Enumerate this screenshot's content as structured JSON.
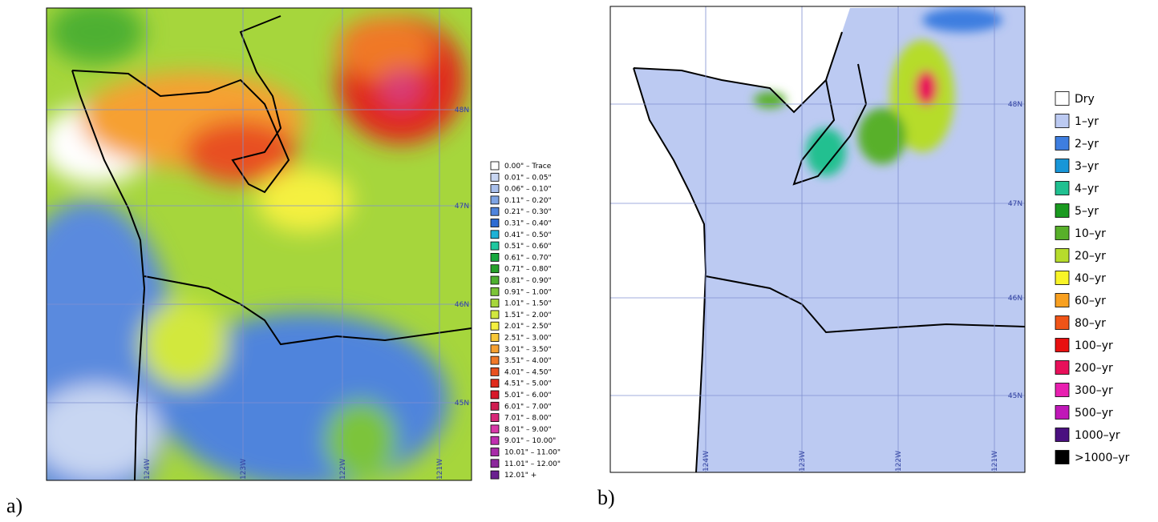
{
  "panels": [
    {
      "label": "a)",
      "lat_labels": [
        "48N",
        "47N",
        "46N",
        "45N"
      ],
      "lon_labels": [
        "124W",
        "123W",
        "122W",
        "121W"
      ],
      "legend": [
        {
          "label": "0.00\" – Trace",
          "color": "#ffffff"
        },
        {
          "label": "0.01\" – 0.05\"",
          "color": "#c8d6f2"
        },
        {
          "label": "0.06\" – 0.10\"",
          "color": "#a9c0ec"
        },
        {
          "label": "0.11\" – 0.20\"",
          "color": "#7ea4e4"
        },
        {
          "label": "0.21\" – 0.30\"",
          "color": "#4f84dc"
        },
        {
          "label": "0.31\" – 0.40\"",
          "color": "#2d6bd2"
        },
        {
          "label": "0.41\" – 0.50\"",
          "color": "#1fb2d6"
        },
        {
          "label": "0.51\" – 0.60\"",
          "color": "#20c8a0"
        },
        {
          "label": "0.61\" – 0.70\"",
          "color": "#17a83e"
        },
        {
          "label": "0.71\" – 0.80\"",
          "color": "#26a02a"
        },
        {
          "label": "0.81\" – 0.90\"",
          "color": "#4eb030"
        },
        {
          "label": "0.91\" – 1.00\"",
          "color": "#7cc43a"
        },
        {
          "label": "1.01\" – 1.50\"",
          "color": "#a6d63c"
        },
        {
          "label": "1.51\" – 2.00\"",
          "color": "#d2e83e"
        },
        {
          "label": "2.01\" – 2.50\"",
          "color": "#f4f040"
        },
        {
          "label": "2.51\" – 3.00\"",
          "color": "#f8c83a"
        },
        {
          "label": "3.01\" – 3.50\"",
          "color": "#f6a030"
        },
        {
          "label": "3.51\" – 4.00\"",
          "color": "#f07828"
        },
        {
          "label": "4.01\" – 4.50\"",
          "color": "#e85020"
        },
        {
          "label": "4.51\" – 5.00\"",
          "color": "#e02a1c"
        },
        {
          "label": "5.01\" – 6.00\"",
          "color": "#d8182a"
        },
        {
          "label": "6.01\" – 7.00\"",
          "color": "#d01c50"
        },
        {
          "label": "7.01\" – 8.00\"",
          "color": "#d82a78"
        },
        {
          "label": "8.01\" – 9.00\"",
          "color": "#d83aa8"
        },
        {
          "label": "9.01\" – 10.00\"",
          "color": "#c030b0"
        },
        {
          "label": "10.01\" – 11.00\"",
          "color": "#a82ca8"
        },
        {
          "label": "11.01\" – 12.00\"",
          "color": "#8c289c"
        },
        {
          "label": "12.01\" +",
          "color": "#6a2090"
        }
      ]
    },
    {
      "label": "b)",
      "lat_labels": [
        "48N",
        "47N",
        "46N",
        "45N"
      ],
      "lon_labels": [
        "124W",
        "123W",
        "122W",
        "121W"
      ],
      "legend": [
        {
          "label": "Dry",
          "color": "#ffffff"
        },
        {
          "label": "1–yr",
          "color": "#bccaf2"
        },
        {
          "label": "2–yr",
          "color": "#3e7ee0"
        },
        {
          "label": "3–yr",
          "color": "#1896d8"
        },
        {
          "label": "4–yr",
          "color": "#20c090"
        },
        {
          "label": "5–yr",
          "color": "#1a9a20"
        },
        {
          "label": "10–yr",
          "color": "#58b02a"
        },
        {
          "label": "20–yr",
          "color": "#b6dc2c"
        },
        {
          "label": "40–yr",
          "color": "#f8f428"
        },
        {
          "label": "60–yr",
          "color": "#f8a020"
        },
        {
          "label": "80–yr",
          "color": "#f05418"
        },
        {
          "label": "100–yr",
          "color": "#e81010"
        },
        {
          "label": "200–yr",
          "color": "#e8105a"
        },
        {
          "label": "300–yr",
          "color": "#e820b0"
        },
        {
          "label": "500–yr",
          "color": "#c018b8"
        },
        {
          "label": "1000–yr",
          "color": "#4a1080"
        },
        {
          "label": ">1000–yr",
          "color": "#000000"
        }
      ]
    }
  ]
}
